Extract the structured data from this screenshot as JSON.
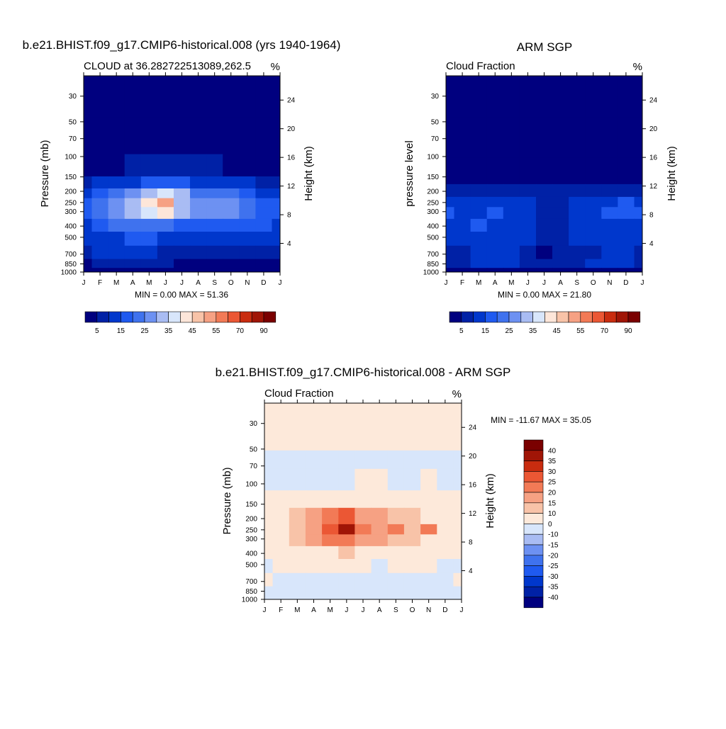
{
  "figure": {
    "colors": {
      "seq": [
        "#00007f",
        "#0021a6",
        "#0037cc",
        "#1f5af0",
        "#3f72ee",
        "#6d91f2",
        "#a9bcf3",
        "#d8e6fb",
        "#fde6d9",
        "#f8c3a8",
        "#f6a183",
        "#f27a56",
        "#eb5734",
        "#c92c0f",
        "#a01506",
        "#7a0000"
      ],
      "div": [
        "#00007f",
        "#0021a6",
        "#0037cc",
        "#1f5af0",
        "#3f72ee",
        "#6d91f2",
        "#a9bcf3",
        "#d8e6fb",
        "#fde9da",
        "#f8c3a8",
        "#f6a183",
        "#f27a56",
        "#eb5734",
        "#c92c0f",
        "#a01506",
        "#7a0000"
      ]
    },
    "months": [
      "J",
      "F",
      "M",
      "A",
      "M",
      "J",
      "J",
      "A",
      "S",
      "O",
      "N",
      "D",
      "J"
    ],
    "pressure_ticks": [
      "30",
      "50",
      "70",
      "100",
      "150",
      "200",
      "250",
      "300",
      "400",
      "500",
      "700",
      "850",
      "1000"
    ],
    "pressure_values": [
      30,
      50,
      70,
      100,
      150,
      200,
      250,
      300,
      400,
      500,
      700,
      850,
      1000
    ],
    "height_ticks": [
      "24",
      "20",
      "16",
      "12",
      "8",
      "4"
    ],
    "height_values": [
      24,
      20,
      16,
      12,
      8,
      4
    ],
    "seq_labels": [
      "5",
      "15",
      "25",
      "35",
      "45",
      "55",
      "70",
      "90"
    ],
    "div_labels": [
      "40",
      "35",
      "30",
      "25",
      "20",
      "15",
      "10",
      "0",
      "-10",
      "-15",
      "-20",
      "-25",
      "-30",
      "-35",
      "-40"
    ]
  },
  "panel1": {
    "title": "b.e21.BHIST.f09_g17.CMIP6-historical.008 (yrs 1940-1964)",
    "left_label": "CLOUD at 36.282722513089,262.5",
    "right_label": "%",
    "ylabel": "Pressure (mb)",
    "ylabel_right": "Height (km)",
    "minmax": "MIN =   0.00 MAX =  51.36"
  },
  "panel2": {
    "title": "ARM SGP",
    "left_label": "Cloud Fraction",
    "right_label": "%",
    "ylabel": "pressure level",
    "ylabel_right": "Height (km)",
    "minmax": "MIN =   0.00 MAX =  21.80"
  },
  "panel3": {
    "title": "b.e21.BHIST.f09_g17.CMIP6-historical.008 - ARM SGP",
    "left_label": "Cloud Fraction",
    "right_label": "%",
    "ylabel": "Pressure (mb)",
    "ylabel_right": "Height (km)",
    "minmax": "MIN = -11.67 MAX =  35.05"
  },
  "chart_data": [
    {
      "type": "heatmap",
      "title": "b.e21.BHIST.f09_g17.CMIP6-historical.008 (yrs 1940-1964)",
      "subtitle": "CLOUD at 36.282722513089,262.5",
      "units": "%",
      "xlabel": "",
      "ylabel": "Pressure (mb)",
      "ylabel_right": "Height (km)",
      "x": [
        "J",
        "F",
        "M",
        "A",
        "M",
        "J",
        "J",
        "A",
        "S",
        "O",
        "N",
        "D",
        "J"
      ],
      "y_ticks": [
        30,
        50,
        70,
        100,
        150,
        200,
        250,
        300,
        400,
        500,
        700,
        850,
        1000
      ],
      "y_range": [
        1000,
        20
      ],
      "levels": [
        5,
        10,
        15,
        20,
        25,
        30,
        35,
        40,
        45,
        50,
        55,
        60,
        70,
        80,
        90
      ],
      "min": 0.0,
      "max": 51.36,
      "rows": [
        {
          "p": 30,
          "values": [
            2,
            2,
            2,
            2,
            2,
            2,
            2,
            2,
            2,
            2,
            2,
            2,
            2
          ]
        },
        {
          "p": 70,
          "values": [
            2,
            2,
            2,
            2,
            2,
            2,
            2,
            2,
            2,
            2,
            2,
            2,
            2
          ]
        },
        {
          "p": 130,
          "values": [
            2,
            3,
            4,
            5,
            6,
            7,
            7,
            6,
            5,
            4,
            3,
            3,
            2
          ]
        },
        {
          "p": 170,
          "values": [
            8,
            10,
            12,
            14,
            17,
            18,
            16,
            14,
            13,
            12,
            10,
            9,
            8
          ]
        },
        {
          "p": 210,
          "values": [
            12,
            16,
            22,
            27,
            32,
            38,
            30,
            24,
            22,
            20,
            17,
            14,
            12
          ]
        },
        {
          "p": 250,
          "values": [
            15,
            20,
            28,
            34,
            42,
            50,
            34,
            28,
            27,
            26,
            22,
            17,
            15
          ]
        },
        {
          "p": 300,
          "values": [
            16,
            21,
            29,
            33,
            37,
            42,
            30,
            27,
            27,
            28,
            24,
            17,
            16
          ]
        },
        {
          "p": 400,
          "values": [
            14,
            17,
            20,
            22,
            23,
            24,
            19,
            18,
            18,
            19,
            17,
            15,
            14
          ]
        },
        {
          "p": 500,
          "values": [
            12,
            13,
            14,
            15,
            15,
            14,
            11,
            10,
            11,
            13,
            13,
            12,
            12
          ]
        },
        {
          "p": 700,
          "values": [
            9,
            10,
            10,
            10,
            10,
            8,
            5,
            5,
            6,
            8,
            9,
            9,
            9
          ]
        },
        {
          "p": 850,
          "values": [
            4,
            5,
            5,
            5,
            6,
            5,
            3,
            3,
            3,
            4,
            4,
            4,
            4
          ]
        },
        {
          "p": 1000,
          "values": [
            2,
            3,
            3,
            3,
            3,
            2,
            2,
            2,
            2,
            2,
            2,
            2,
            2
          ]
        }
      ]
    },
    {
      "type": "heatmap",
      "title": "ARM SGP",
      "subtitle": "Cloud Fraction",
      "units": "%",
      "xlabel": "",
      "ylabel": "pressure level",
      "ylabel_right": "Height (km)",
      "x": [
        "J",
        "F",
        "M",
        "A",
        "M",
        "J",
        "J",
        "A",
        "S",
        "O",
        "N",
        "D",
        "J"
      ],
      "y_ticks": [
        30,
        50,
        70,
        100,
        150,
        200,
        250,
        300,
        400,
        500,
        700,
        850,
        1000
      ],
      "y_range": [
        1000,
        20
      ],
      "levels": [
        5,
        10,
        15,
        20,
        25,
        30,
        35,
        40,
        45,
        50,
        55,
        60,
        70,
        80,
        90
      ],
      "min": 0.0,
      "max": 21.8,
      "rows": [
        {
          "p": 30,
          "values": [
            1,
            1,
            1,
            1,
            1,
            1,
            1,
            1,
            1,
            1,
            1,
            1,
            1
          ]
        },
        {
          "p": 70,
          "values": [
            1,
            1,
            1,
            1,
            1,
            1,
            1,
            1,
            1,
            1,
            1,
            1,
            1
          ]
        },
        {
          "p": 150,
          "values": [
            2,
            2,
            2,
            2,
            2,
            2,
            2,
            2,
            2,
            2,
            2,
            2,
            2
          ]
        },
        {
          "p": 200,
          "values": [
            8,
            7,
            8,
            8,
            7,
            7,
            6,
            7,
            7,
            7,
            8,
            9,
            8
          ]
        },
        {
          "p": 250,
          "values": [
            13,
            12,
            13,
            14,
            13,
            12,
            8,
            9,
            11,
            12,
            14,
            15,
            13
          ]
        },
        {
          "p": 300,
          "values": [
            16,
            14,
            14,
            15,
            14,
            13,
            9,
            9,
            12,
            13,
            16,
            18,
            16
          ]
        },
        {
          "p": 400,
          "values": [
            14,
            14,
            15,
            14,
            13,
            12,
            8,
            8,
            11,
            12,
            13,
            14,
            14
          ]
        },
        {
          "p": 500,
          "values": [
            12,
            12,
            12,
            13,
            12,
            11,
            7,
            8,
            10,
            11,
            12,
            12,
            12
          ]
        },
        {
          "p": 700,
          "values": [
            8,
            9,
            10,
            11,
            10,
            8,
            4,
            6,
            8,
            9,
            10,
            10,
            8
          ]
        },
        {
          "p": 850,
          "values": [
            9,
            9,
            10,
            10,
            10,
            8,
            6,
            7,
            9,
            10,
            11,
            10,
            9
          ]
        },
        {
          "p": 1000,
          "values": [
            3,
            3,
            3,
            3,
            3,
            3,
            3,
            3,
            3,
            3,
            3,
            3,
            3
          ]
        }
      ]
    },
    {
      "type": "heatmap",
      "title": "b.e21.BHIST.f09_g17.CMIP6-historical.008 - ARM SGP",
      "subtitle": "Cloud Fraction",
      "units": "%",
      "xlabel": "",
      "ylabel": "Pressure (mb)",
      "ylabel_right": "Height (km)",
      "x": [
        "J",
        "F",
        "M",
        "A",
        "M",
        "J",
        "J",
        "A",
        "S",
        "O",
        "N",
        "D",
        "J"
      ],
      "y_ticks": [
        30,
        50,
        70,
        100,
        150,
        200,
        250,
        300,
        400,
        500,
        700,
        850,
        1000
      ],
      "y_range": [
        1000,
        20
      ],
      "levels": [
        -40,
        -35,
        -30,
        -25,
        -20,
        -15,
        -10,
        0,
        10,
        15,
        20,
        25,
        30,
        35,
        40
      ],
      "min": -11.67,
      "max": 35.05,
      "rows": [
        {
          "p": 30,
          "values": [
            1,
            1,
            1,
            1,
            1,
            1,
            1,
            1,
            1,
            1,
            1,
            1,
            1
          ]
        },
        {
          "p": 48,
          "values": [
            1,
            1,
            1,
            1,
            1,
            1,
            1,
            1,
            1,
            1,
            1,
            1,
            1
          ]
        },
        {
          "p": 55,
          "values": [
            -2,
            -2,
            -2,
            -2,
            -2,
            -2,
            -2,
            -2,
            -2,
            -2,
            -2,
            -2,
            -2
          ]
        },
        {
          "p": 100,
          "values": [
            -1,
            -1,
            -1,
            -1,
            -1,
            -1,
            1,
            1,
            -1,
            -1,
            1,
            -1,
            -1
          ]
        },
        {
          "p": 130,
          "values": [
            1,
            2,
            2,
            3,
            3,
            3,
            3,
            3,
            2,
            2,
            2,
            2,
            1
          ]
        },
        {
          "p": 200,
          "values": [
            3,
            5,
            10,
            15,
            22,
            28,
            18,
            15,
            14,
            12,
            9,
            5,
            3
          ]
        },
        {
          "p": 250,
          "values": [
            4,
            8,
            14,
            19,
            29,
            35,
            24,
            18,
            24,
            14,
            20,
            6,
            4
          ]
        },
        {
          "p": 300,
          "values": [
            3,
            6,
            12,
            17,
            20,
            24,
            18,
            15,
            14,
            12,
            8,
            5,
            3
          ]
        },
        {
          "p": 400,
          "values": [
            2,
            3,
            5,
            7,
            9,
            10,
            8,
            8,
            6,
            4,
            3,
            3,
            2
          ]
        },
        {
          "p": 500,
          "values": [
            -1,
            2,
            2,
            2,
            3,
            3,
            2,
            -1,
            2,
            2,
            1,
            -1,
            -1
          ]
        },
        {
          "p": 700,
          "values": [
            1,
            -1,
            -1,
            -1,
            -1,
            -1,
            -1,
            -1,
            -1,
            -1,
            -1,
            -1,
            1
          ]
        },
        {
          "p": 850,
          "values": [
            -2,
            -2,
            -2,
            -2,
            -2,
            -2,
            -2,
            -2,
            -2,
            -2,
            -2,
            -2,
            -2
          ]
        },
        {
          "p": 1000,
          "values": [
            -1,
            -1,
            -1,
            -1,
            -1,
            -1,
            -1,
            -1,
            -1,
            -1,
            -1,
            -1,
            -1
          ]
        }
      ]
    }
  ]
}
